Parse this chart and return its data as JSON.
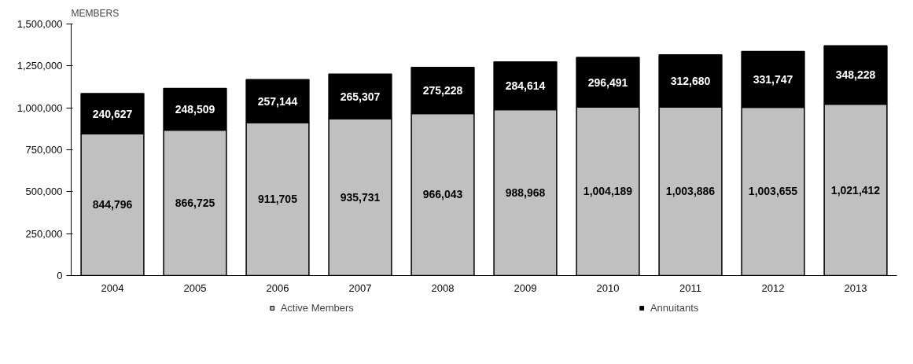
{
  "chart_data": {
    "type": "bar",
    "stacked": true,
    "ylabel": "MEMBERS",
    "categories": [
      "2004",
      "2005",
      "2006",
      "2007",
      "2008",
      "2009",
      "2010",
      "2011",
      "2012",
      "2013"
    ],
    "series": [
      {
        "name": "Active Members",
        "color": "#c0c0c0",
        "values": [
          844796,
          866725,
          911705,
          935731,
          966043,
          988968,
          1004189,
          1003886,
          1003655,
          1021412
        ],
        "value_labels": [
          "844,796",
          "866,725",
          "911,705",
          "935,731",
          "966,043",
          "988,968",
          "1,004,189",
          "1,003,886",
          "1,003,655",
          "1,021,412"
        ]
      },
      {
        "name": "Annuitants",
        "color": "#000000",
        "values": [
          240627,
          248509,
          257144,
          265307,
          275228,
          284614,
          296491,
          312680,
          331747,
          348228
        ],
        "value_labels": [
          "240,627",
          "248,509",
          "257,144",
          "265,307",
          "275,228",
          "284,614",
          "296,491",
          "312,680",
          "331,747",
          "348,228"
        ]
      }
    ],
    "ylim": [
      0,
      1500000
    ],
    "yticks": [
      0,
      {
        "value": 250000,
        "label": "250,000"
      },
      {
        "value": 500000,
        "label": "500,000"
      },
      {
        "value": 750000,
        "label": "750,000"
      },
      {
        "value": 1000000,
        "label": "1,000,000"
      },
      {
        "value": 1250000,
        "label": "1,250,000"
      },
      {
        "value": 1500000,
        "label": "1,500,000"
      }
    ],
    "legend": "bottom"
  }
}
